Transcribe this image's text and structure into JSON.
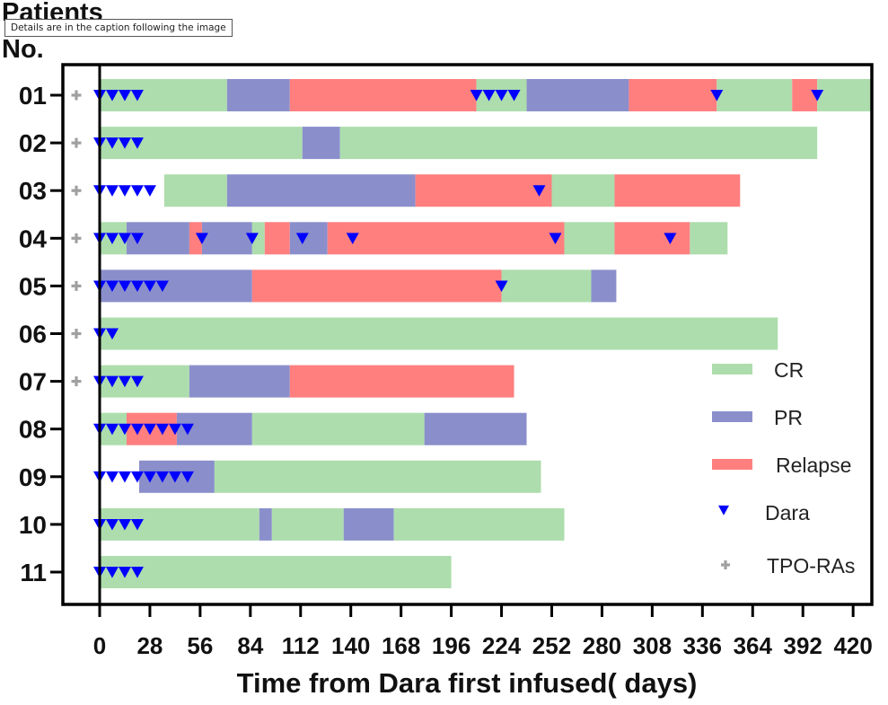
{
  "tooltip": "Details are in the caption following the image",
  "chart_data": {
    "type": "swimmer",
    "title": "",
    "ylabel": [
      "Patients",
      "No."
    ],
    "xlabel": "Time from Dara first infused( days)",
    "xlim": [
      -20,
      431
    ],
    "xticks": [
      0,
      28,
      56,
      84,
      112,
      140,
      168,
      196,
      224,
      252,
      280,
      308,
      336,
      364,
      392,
      420
    ],
    "colors": {
      "CR": "#ADDDAD",
      "PR": "#8A8FCB",
      "Relapse": "#FF7F7F",
      "Dara": "#0000FF",
      "TPO-RAs": "#A0A0A0"
    },
    "legend": {
      "position": "lower-right",
      "entries": [
        {
          "label": "CR",
          "kind": "bar"
        },
        {
          "label": "PR",
          "kind": "bar"
        },
        {
          "label": "Relapse",
          "kind": "bar"
        },
        {
          "label": "Dara",
          "kind": "triangle"
        },
        {
          "label": "TPO-RAs",
          "kind": "plus"
        }
      ]
    },
    "patients": [
      {
        "id": "01",
        "tpo": true,
        "segments": [
          [
            "CR",
            0,
            71
          ],
          [
            "PR",
            71,
            106
          ],
          [
            "Relapse",
            106,
            210
          ],
          [
            "CR",
            210,
            238
          ],
          [
            "PR",
            238,
            295
          ],
          [
            "Relapse",
            295,
            344
          ],
          [
            "CR",
            344,
            386
          ],
          [
            "Relapse",
            386,
            400
          ],
          [
            "CR",
            400,
            431
          ]
        ],
        "dara": [
          0,
          7,
          14,
          21,
          210,
          217,
          224,
          231,
          344,
          400
        ]
      },
      {
        "id": "02",
        "tpo": true,
        "segments": [
          [
            "CR",
            0,
            113
          ],
          [
            "PR",
            113,
            134
          ],
          [
            "CR",
            134,
            400
          ]
        ],
        "dara": [
          0,
          7,
          14,
          21
        ]
      },
      {
        "id": "03",
        "tpo": true,
        "segments": [
          [
            "CR",
            36,
            71
          ],
          [
            "PR",
            71,
            176
          ],
          [
            "Relapse",
            176,
            252
          ],
          [
            "CR",
            252,
            287
          ],
          [
            "Relapse",
            287,
            357
          ]
        ],
        "dara": [
          0,
          7,
          14,
          21,
          28,
          245
        ]
      },
      {
        "id": "04",
        "tpo": true,
        "segments": [
          [
            "CR",
            0,
            15
          ],
          [
            "PR",
            15,
            50
          ],
          [
            "Relapse",
            50,
            57
          ],
          [
            "PR",
            57,
            85
          ],
          [
            "CR",
            85,
            92
          ],
          [
            "Relapse",
            92,
            106
          ],
          [
            "PR",
            106,
            127
          ],
          [
            "Relapse",
            127,
            259
          ],
          [
            "CR",
            259,
            287
          ],
          [
            "Relapse",
            287,
            329
          ],
          [
            "CR",
            329,
            350
          ]
        ],
        "dara": [
          0,
          7,
          14,
          21,
          57,
          85,
          113,
          141,
          254,
          318
        ]
      },
      {
        "id": "05",
        "tpo": true,
        "segments": [
          [
            "PR",
            0,
            85
          ],
          [
            "Relapse",
            85,
            224
          ],
          [
            "CR",
            224,
            274
          ],
          [
            "PR",
            274,
            288
          ]
        ],
        "dara": [
          0,
          7,
          14,
          21,
          28,
          35,
          224
        ]
      },
      {
        "id": "06",
        "tpo": true,
        "segments": [
          [
            "CR",
            0,
            378
          ]
        ],
        "dara": [
          0,
          7
        ]
      },
      {
        "id": "07",
        "tpo": true,
        "segments": [
          [
            "CR",
            0,
            50
          ],
          [
            "PR",
            50,
            106
          ],
          [
            "Relapse",
            106,
            231
          ]
        ],
        "dara": [
          0,
          7,
          14,
          21
        ]
      },
      {
        "id": "08",
        "tpo": false,
        "segments": [
          [
            "CR",
            0,
            15
          ],
          [
            "Relapse",
            15,
            43
          ],
          [
            "PR",
            43,
            85
          ],
          [
            "CR",
            85,
            181
          ],
          [
            "PR",
            181,
            238
          ]
        ],
        "dara": [
          0,
          7,
          14,
          21,
          28,
          35,
          42,
          49
        ]
      },
      {
        "id": "09",
        "tpo": false,
        "segments": [
          [
            "PR",
            22,
            64
          ],
          [
            "CR",
            64,
            246
          ]
        ],
        "dara": [
          0,
          7,
          14,
          21,
          28,
          35,
          42,
          49
        ]
      },
      {
        "id": "10",
        "tpo": false,
        "segments": [
          [
            "CR",
            0,
            89
          ],
          [
            "PR",
            89,
            96
          ],
          [
            "CR",
            96,
            136
          ],
          [
            "PR",
            136,
            164
          ],
          [
            "CR",
            164,
            259
          ]
        ],
        "dara": [
          0,
          7,
          14,
          21
        ]
      },
      {
        "id": "11",
        "tpo": false,
        "segments": [
          [
            "CR",
            0,
            196
          ]
        ],
        "dara": [
          0,
          7,
          14,
          21
        ]
      }
    ]
  }
}
